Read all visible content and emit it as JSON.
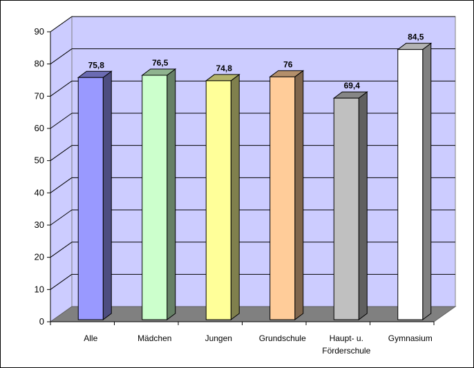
{
  "chart_data": {
    "type": "bar",
    "title": "",
    "xlabel": "",
    "ylabel": "",
    "categories": [
      "Alle",
      "Mädchen",
      "Jungen",
      "Grundschule",
      "Haupt- u. Förderschule",
      "Gymnasium"
    ],
    "category_lines": [
      [
        "Alle"
      ],
      [
        "Mädchen"
      ],
      [
        "Jungen"
      ],
      [
        "Grundschule"
      ],
      [
        "Haupt- u.",
        "Förderschule"
      ],
      [
        "Gymnasium"
      ]
    ],
    "values": [
      75.8,
      76.5,
      74.8,
      76,
      69.4,
      84.5
    ],
    "value_labels": [
      "75,8",
      "76,5",
      "74,8",
      "76",
      "69,4",
      "84,5"
    ],
    "ylim": [
      0,
      90
    ],
    "yticks": [
      0,
      10,
      20,
      30,
      40,
      50,
      60,
      70,
      80,
      90
    ],
    "grid": true,
    "legend": "none",
    "style": "3d-column",
    "colors": {
      "bars": [
        "#9999ff",
        "#ccffcc",
        "#ffff99",
        "#ffcc99",
        "#c0c0c0",
        "#ffffff"
      ],
      "back_wall": "#ccccff",
      "floor": "#808080",
      "gridline": "#000000"
    }
  }
}
